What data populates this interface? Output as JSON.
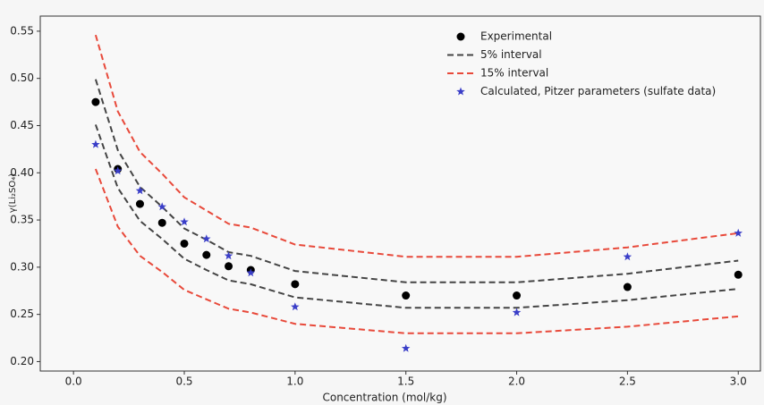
{
  "chart_data": {
    "type": "scatter",
    "x_label": "Concentration (mol/kg)",
    "y_label": "γ(Li₂SO₄)",
    "x": [
      0.1,
      0.2,
      0.3,
      0.4,
      0.5,
      0.6,
      0.7,
      0.8,
      1.0,
      1.5,
      2.0,
      2.5,
      3.0
    ],
    "series": [
      {
        "name": "Experimental",
        "color": "#000000",
        "marker": "circle",
        "values": [
          0.475,
          0.404,
          0.367,
          0.347,
          0.325,
          0.313,
          0.301,
          0.297,
          0.282,
          0.27,
          0.27,
          0.279,
          0.292
        ]
      },
      {
        "name": "5% interval",
        "color": "#444444",
        "marker": "dashed",
        "upper": [
          0.499,
          0.424,
          0.385,
          0.364,
          0.341,
          0.329,
          0.316,
          0.312,
          0.296,
          0.284,
          0.284,
          0.293,
          0.307
        ],
        "lower": [
          0.451,
          0.384,
          0.349,
          0.33,
          0.309,
          0.297,
          0.286,
          0.282,
          0.268,
          0.257,
          0.257,
          0.265,
          0.277
        ]
      },
      {
        "name": "15% interval",
        "color": "#e8493a",
        "marker": "dashed",
        "upper": [
          0.546,
          0.465,
          0.422,
          0.399,
          0.374,
          0.36,
          0.346,
          0.342,
          0.324,
          0.311,
          0.311,
          0.321,
          0.336
        ],
        "lower": [
          0.404,
          0.343,
          0.312,
          0.295,
          0.276,
          0.266,
          0.256,
          0.252,
          0.24,
          0.23,
          0.23,
          0.237,
          0.248
        ]
      },
      {
        "name": "Calculated, Pitzer parameters (sulfate data)",
        "color": "#3a3ec8",
        "marker": "star",
        "values": [
          0.43,
          0.402,
          0.381,
          0.364,
          0.348,
          0.33,
          0.312,
          0.294,
          0.258,
          0.214,
          0.252,
          0.311,
          0.336
        ]
      }
    ],
    "xlim": [
      -0.15,
      3.1
    ],
    "ylim": [
      0.19,
      0.566
    ],
    "xticks": [
      {
        "value": 0.0,
        "label": "0.0"
      },
      0.5,
      {
        "value": 1.0,
        "label": "1.0"
      },
      1.5,
      {
        "value": 2.0,
        "label": "2.0"
      },
      2.5,
      {
        "value": 3.0,
        "label": "3.0"
      }
    ],
    "yticks": [
      {
        "value": 0.2,
        "label": "0.20"
      },
      0.25,
      {
        "value": 0.3,
        "label": "0.30"
      },
      0.35,
      {
        "value": 0.4,
        "label": "0.40"
      },
      0.45,
      {
        "value": 0.5,
        "label": "0.50"
      },
      0.55
    ],
    "legend": "upper right"
  }
}
